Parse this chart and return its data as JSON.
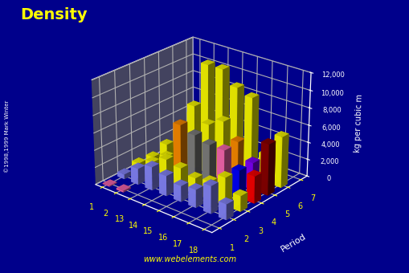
{
  "title": "Density",
  "ylabel": "kg per cubic m",
  "xlabel_axis": "Period",
  "watermark": "www.webelements.com",
  "background_color": "#00008B",
  "floor_color": "#555555",
  "title_color": "#FFFF00",
  "axis_color": "#FFFFFF",
  "tick_color": "#FFFF00",
  "yticks": [
    0,
    2000,
    4000,
    6000,
    8000,
    10000,
    12000
  ],
  "groups": [
    1,
    2,
    13,
    14,
    15,
    16,
    17,
    18
  ],
  "periods": [
    1,
    2,
    3,
    4,
    5,
    6,
    7
  ],
  "densities": {
    "1_1": {
      "value": 90,
      "color": "#FF69B4"
    },
    "1_2": {
      "value": 179,
      "color": "#FF69B4"
    },
    "2_1": {
      "value": 535,
      "color": "#8888FF"
    },
    "2_2": {
      "value": 1848,
      "color": "#8888FF"
    },
    "2_13": {
      "value": 2700,
      "color": "#8888FF"
    },
    "2_14": {
      "value": 2330,
      "color": "#8888FF"
    },
    "2_15": {
      "value": 1823,
      "color": "#8888FF"
    },
    "2_16": {
      "value": 2070,
      "color": "#8888FF"
    },
    "2_17": {
      "value": 3170,
      "color": "#8888FF"
    },
    "2_18": {
      "value": 1784,
      "color": "#8888FF"
    },
    "3_1": {
      "value": 970,
      "color": "#FFFF00"
    },
    "3_2": {
      "value": 1740,
      "color": "#FFFF00"
    },
    "3_13": {
      "value": 2700,
      "color": "#FFFF00"
    },
    "3_14": {
      "value": 2330,
      "color": "#FFFF00"
    },
    "3_15": {
      "value": 1823,
      "color": "#FFFF00"
    },
    "3_16": {
      "value": 2070,
      "color": "#FFFF00"
    },
    "3_17": {
      "value": 3214,
      "color": "#FFFF00"
    },
    "3_18": {
      "value": 1784,
      "color": "#FFFF00"
    },
    "4_1": {
      "value": 860,
      "color": "#FFFF00"
    },
    "4_2": {
      "value": 1550,
      "color": "#FFFF00"
    },
    "4_13": {
      "value": 5910,
      "color": "#FF8C00"
    },
    "4_14": {
      "value": 5323,
      "color": "#808080"
    },
    "4_15": {
      "value": 4810,
      "color": "#808080"
    },
    "4_16": {
      "value": 4810,
      "color": "#FF69B4"
    },
    "4_17": {
      "value": 3120,
      "color": "#0000FF"
    },
    "4_18": {
      "value": 3120,
      "color": "#FF0000"
    },
    "5_1": {
      "value": 1532,
      "color": "#FFFF00"
    },
    "5_2": {
      "value": 3594,
      "color": "#FFFF00"
    },
    "5_13": {
      "value": 7310,
      "color": "#FFFF00"
    },
    "5_14": {
      "value": 5727,
      "color": "#FFFF00"
    },
    "5_15": {
      "value": 6690,
      "color": "#FFFF00"
    },
    "5_16": {
      "value": 4940,
      "color": "#FF8C00"
    },
    "5_17": {
      "value": 3120,
      "color": "#8000FF"
    },
    "5_18": {
      "value": 5900,
      "color": "#8B0000"
    },
    "6_1": {
      "value": 1873,
      "color": "#FFFF00"
    },
    "6_2": {
      "value": 5000,
      "color": "#FFFF00"
    },
    "6_13": {
      "value": 11340,
      "color": "#FFFF00"
    },
    "6_14": {
      "value": 11350,
      "color": "#FFFF00"
    },
    "6_15": {
      "value": 9800,
      "color": "#FFFF00"
    },
    "6_16": {
      "value": 9196,
      "color": "#FFFF00"
    },
    "6_17": {
      "value": 3214,
      "color": "#FFFF00"
    },
    "6_18": {
      "value": 5900,
      "color": "#FFFF00"
    },
    "7_1": {
      "value": 1873,
      "color": "#FFFF00"
    },
    "7_2": {
      "value": 700,
      "color": "#FFFF00"
    },
    "7_13": {
      "value": 0,
      "color": "#FFFF00"
    },
    "7_14": {
      "value": 0,
      "color": "#FFFF00"
    },
    "7_15": {
      "value": 0,
      "color": "#FFFF00"
    },
    "7_16": {
      "value": 0,
      "color": "#FFFF00"
    },
    "7_17": {
      "value": 0,
      "color": "#FFFF00"
    },
    "7_18": {
      "value": 0,
      "color": "#FFFF00"
    }
  }
}
